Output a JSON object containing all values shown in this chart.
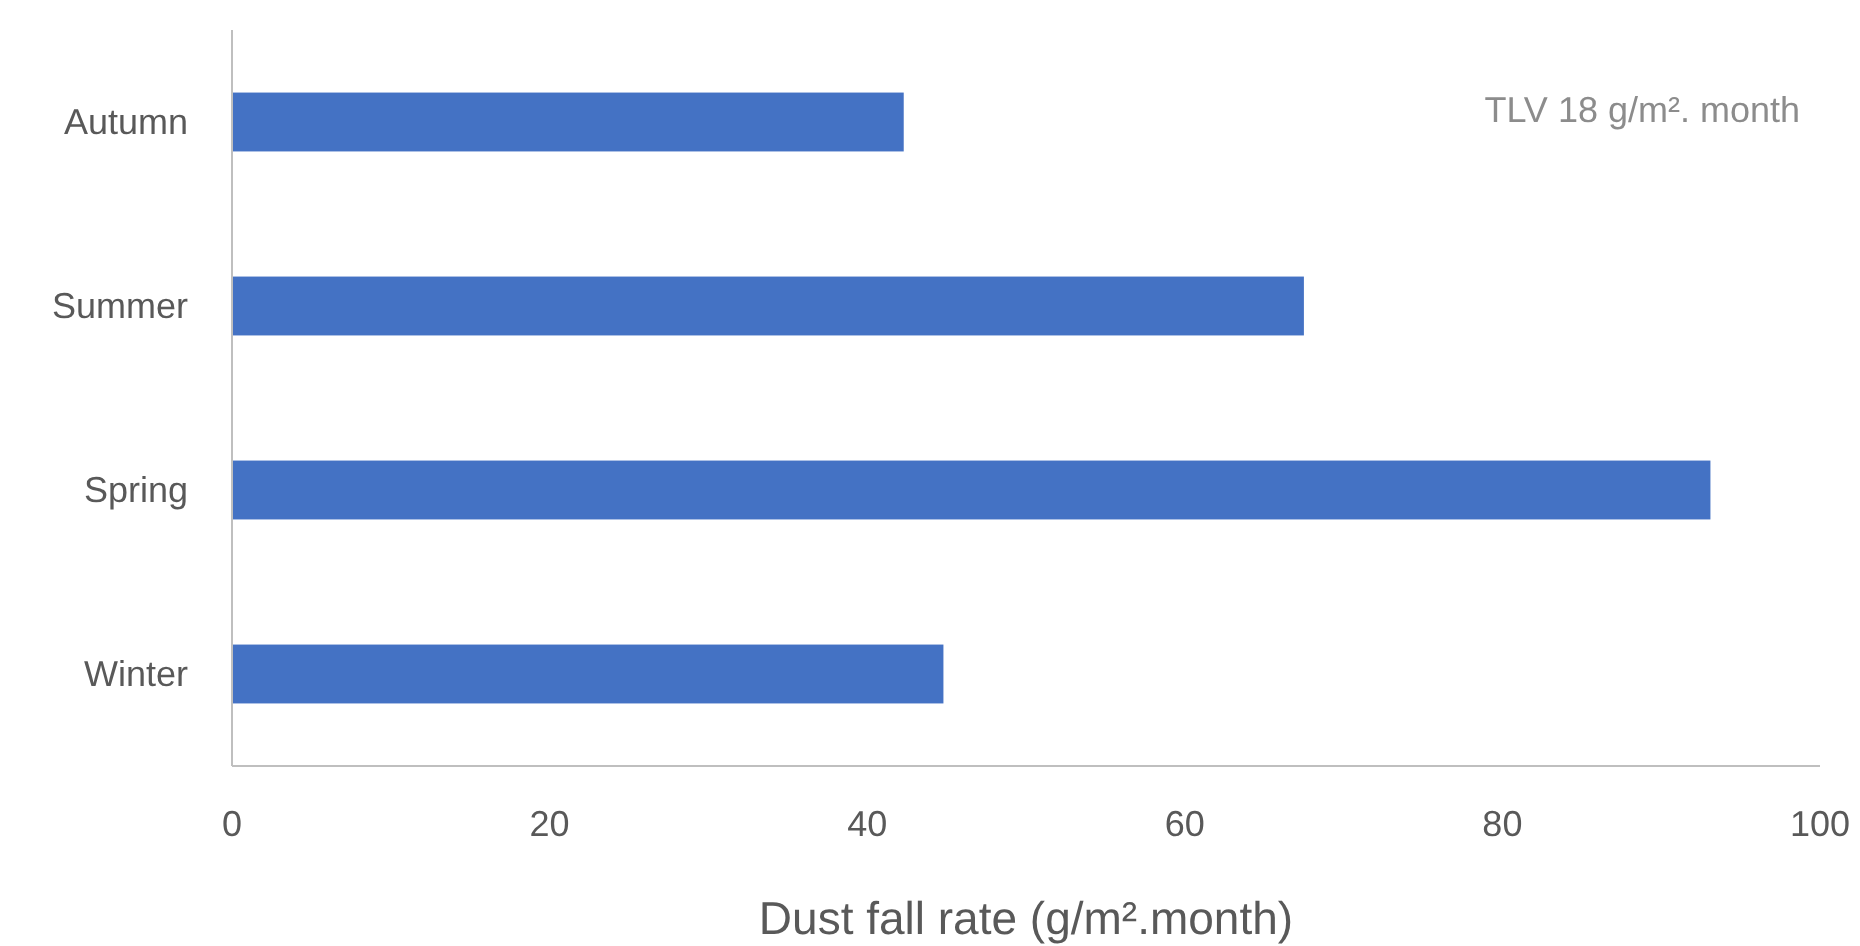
{
  "chart_data": {
    "type": "bar",
    "orientation": "horizontal",
    "categories": [
      "Autumn",
      "Summer",
      "Spring",
      "Winter"
    ],
    "values": [
      42.3,
      67.5,
      93.1,
      44.8
    ],
    "color": "#4472c4",
    "xlim": [
      0,
      100
    ],
    "xticks": [
      0,
      20,
      40,
      60,
      80,
      100
    ],
    "xlabel": "Dust fall rate (g/m².month)",
    "annotations": [
      "TLV 18 g/m². month"
    ],
    "grid": false
  }
}
